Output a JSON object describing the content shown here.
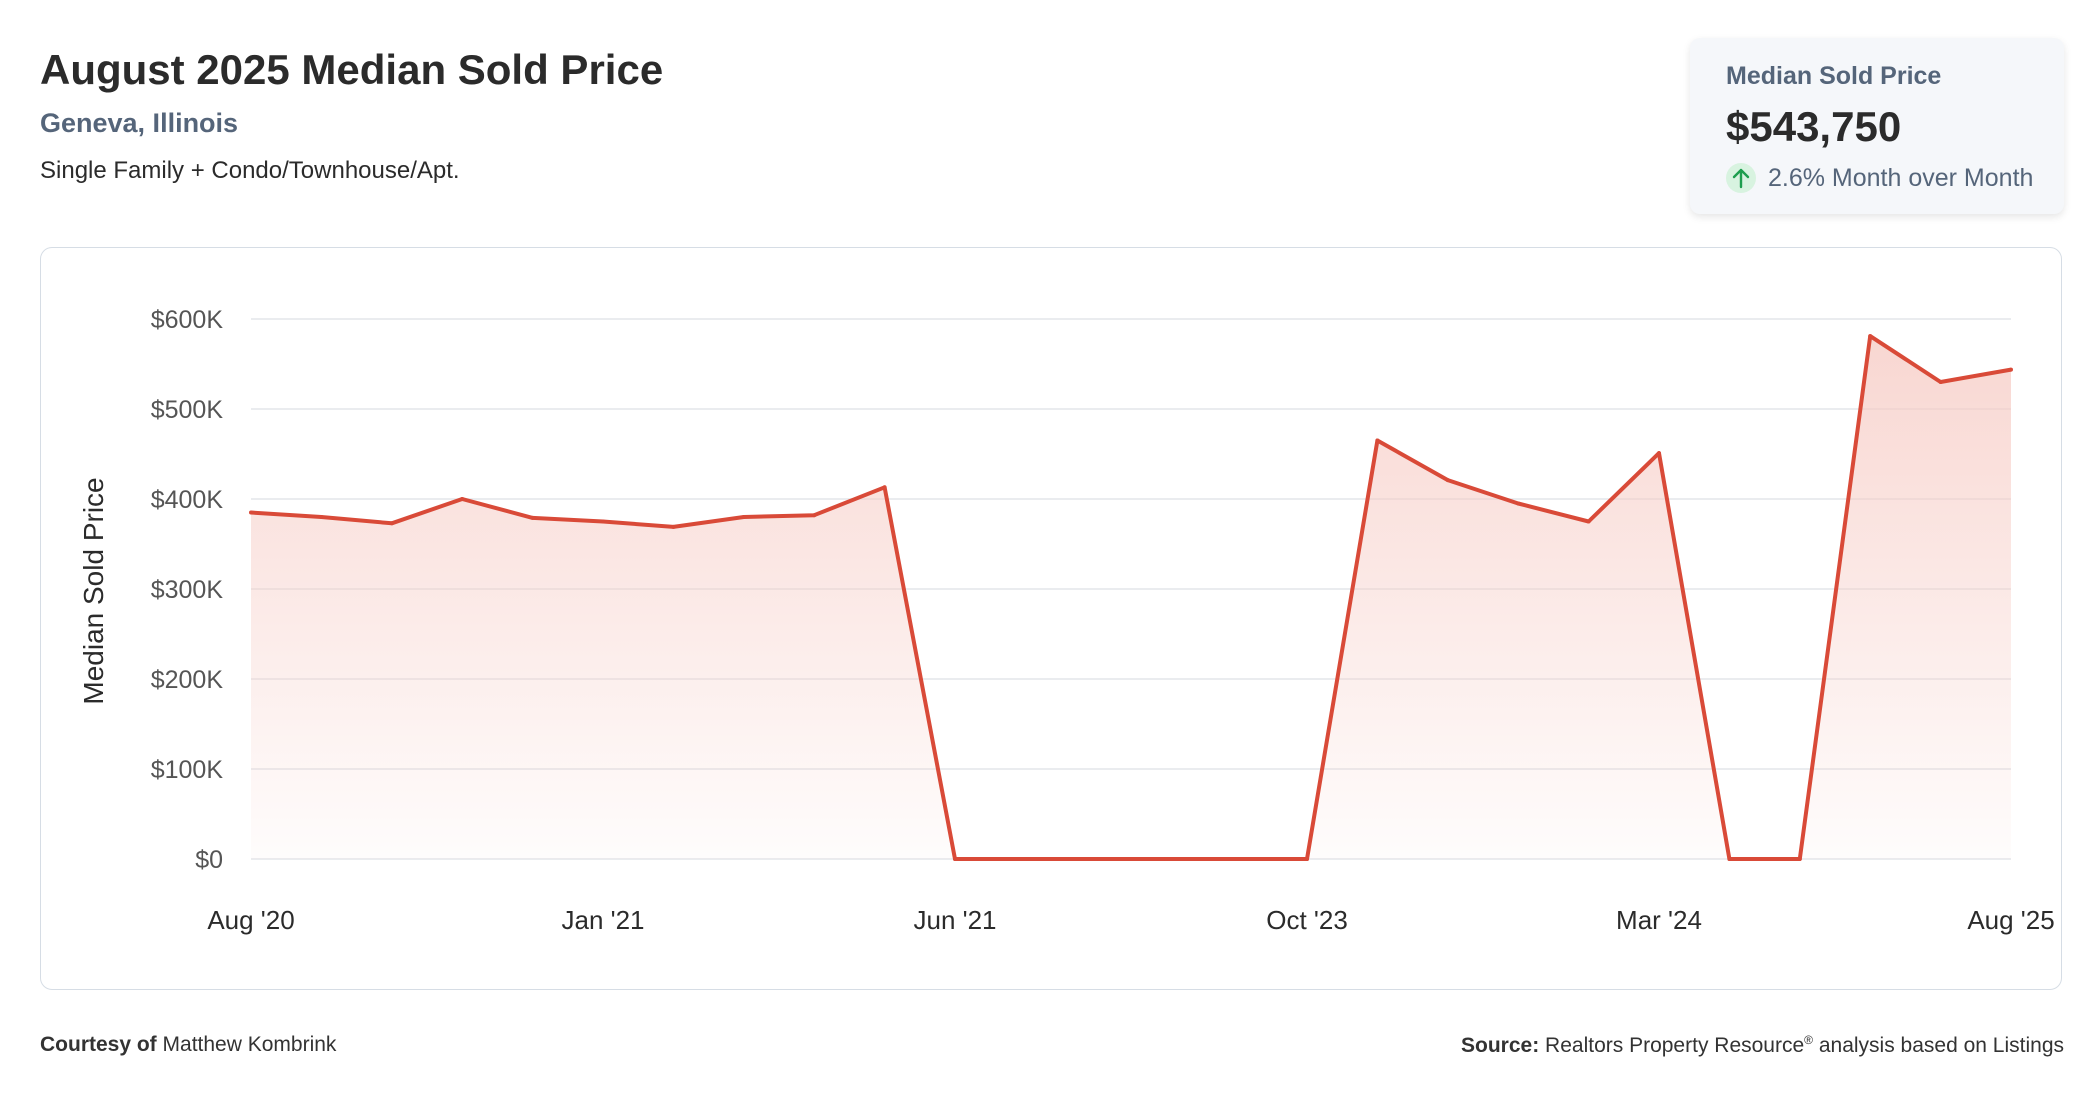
{
  "header": {
    "title": "August 2025 Median Sold Price",
    "location": "Geneva, Illinois",
    "property_types": "Single Family + Condo/Townhouse/Apt."
  },
  "summary": {
    "label": "Median Sold Price",
    "value": "$543,750",
    "change": "2.6% Month over Month",
    "trend_icon": "arrow-up-icon",
    "trend_color": "#1e9e4f"
  },
  "footer": {
    "courtesy_label": "Courtesy of",
    "courtesy_name": "Matthew Kombrink",
    "source_label": "Source:",
    "source_text": "Realtors Property Resource",
    "source_mark": "®",
    "source_suffix": "analysis based on Listings"
  },
  "chart_data": {
    "type": "area",
    "ylabel": "Median Sold Price",
    "ylim": [
      0,
      600000
    ],
    "yticks": [
      0,
      100000,
      200000,
      300000,
      400000,
      500000,
      600000
    ],
    "ytick_labels": [
      "$0",
      "$100K",
      "$200K",
      "$300K",
      "$400K",
      "$500K",
      "$600K"
    ],
    "x_tick_labels": [
      "Aug '20",
      "Jan '21",
      "Jun '21",
      "Oct '23",
      "Mar '24",
      "Aug '25"
    ],
    "x_tick_indices": [
      0,
      5,
      10,
      15,
      20,
      25
    ],
    "grid": true,
    "line_color": "#d94a38",
    "fill_color": "#f6c9c2",
    "series": [
      {
        "values": [
          385000,
          380000,
          373000,
          400000,
          379000,
          375000,
          369000,
          380000,
          382000,
          413000,
          0,
          0,
          0,
          0,
          0,
          0,
          465000,
          421000,
          395000,
          375000,
          451000,
          0,
          0,
          581000,
          530000,
          543750
        ]
      }
    ]
  }
}
